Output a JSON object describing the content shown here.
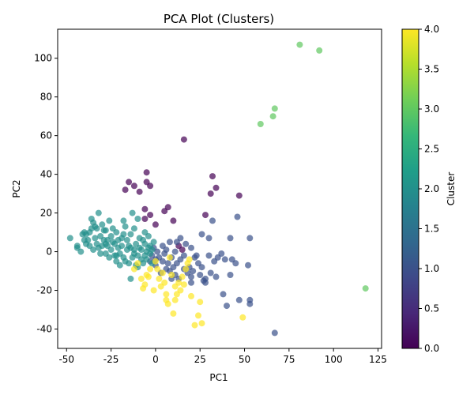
{
  "chart_data": {
    "type": "scatter",
    "title": "PCA Plot (Clusters)",
    "xlabel": "PC1",
    "ylabel": "PC2",
    "xlim": [
      -55,
      127
    ],
    "ylim": [
      -50,
      115
    ],
    "xticks": [
      -50,
      -25,
      0,
      25,
      50,
      75,
      100,
      125
    ],
    "yticks": [
      -40,
      -20,
      0,
      20,
      40,
      60,
      80,
      100
    ],
    "grid": false,
    "marker_alpha": 0.7,
    "colormap": "viridis",
    "colormap_stops": [
      "#440154",
      "#482878",
      "#3e4989",
      "#31688e",
      "#26828e",
      "#1f9e89",
      "#35b779",
      "#6ece58",
      "#b5de2b",
      "#fde725"
    ],
    "colorbar": {
      "label": "Cluster",
      "range": [
        0,
        4
      ],
      "ticks": [
        "0.0",
        "0.5",
        "1.0",
        "1.5",
        "2.0",
        "2.5",
        "3.0",
        "3.5",
        "4.0"
      ]
    },
    "series": [
      {
        "cluster": 0,
        "points": [
          [
            16,
            58
          ],
          [
            -5,
            41
          ],
          [
            -15,
            36
          ],
          [
            -9,
            31
          ],
          [
            -12,
            34
          ],
          [
            -5,
            36
          ],
          [
            -3,
            34
          ],
          [
            -17,
            32
          ],
          [
            -6,
            22
          ],
          [
            -3,
            19
          ],
          [
            -6,
            17
          ],
          [
            7,
            23
          ],
          [
            5,
            21
          ],
          [
            10,
            16
          ],
          [
            0,
            14
          ],
          [
            32,
            39
          ],
          [
            34,
            33
          ],
          [
            31,
            30
          ],
          [
            47,
            29
          ],
          [
            28,
            19
          ],
          [
            13,
            3
          ],
          [
            15,
            1
          ]
        ]
      },
      {
        "cluster": 1,
        "points": [
          [
            -2,
            -2
          ],
          [
            2,
            -3
          ],
          [
            4,
            -5
          ],
          [
            0,
            -7
          ],
          [
            6,
            -9
          ],
          [
            3,
            -11
          ],
          [
            8,
            -10
          ],
          [
            10,
            -8
          ],
          [
            12,
            -6
          ],
          [
            14,
            -4
          ],
          [
            9,
            -3
          ],
          [
            11,
            -12
          ],
          [
            13,
            -14
          ],
          [
            16,
            -9
          ],
          [
            18,
            -11
          ],
          [
            20,
            -13
          ],
          [
            20,
            -16
          ],
          [
            22,
            -3
          ],
          [
            24,
            -6
          ],
          [
            26,
            -8
          ],
          [
            25,
            -12
          ],
          [
            28,
            -14
          ],
          [
            28,
            -16
          ],
          [
            31,
            -11
          ],
          [
            30,
            -2
          ],
          [
            33,
            -5
          ],
          [
            35,
            -3
          ],
          [
            37,
            -1
          ],
          [
            38,
            -22
          ],
          [
            40,
            -28
          ],
          [
            42,
            -12
          ],
          [
            43,
            -4
          ],
          [
            45,
            -6
          ],
          [
            46,
            18
          ],
          [
            47,
            -25
          ],
          [
            53,
            -25
          ],
          [
            53,
            -27
          ],
          [
            53,
            7
          ],
          [
            52,
            -7
          ],
          [
            67,
            -42
          ],
          [
            32,
            16
          ],
          [
            26,
            9
          ],
          [
            30,
            7
          ],
          [
            14,
            7
          ],
          [
            12,
            5
          ],
          [
            17,
            4
          ],
          [
            20,
            2
          ],
          [
            6,
            1
          ],
          [
            4,
            3
          ],
          [
            8,
            5
          ],
          [
            0,
            -4
          ],
          [
            -3,
            -5
          ],
          [
            -1,
            2
          ],
          [
            1,
            0
          ],
          [
            5,
            -1
          ],
          [
            7,
            -6
          ],
          [
            9,
            -14
          ],
          [
            19,
            -8
          ],
          [
            21,
            -10
          ],
          [
            16,
            -2
          ],
          [
            11,
            0
          ],
          [
            42,
            7
          ],
          [
            23,
            -2
          ],
          [
            27,
            -15
          ],
          [
            34,
            -13
          ],
          [
            39,
            -4
          ]
        ]
      },
      {
        "cluster": 2,
        "points": [
          [
            -48,
            7
          ],
          [
            -44,
            3
          ],
          [
            -42,
            0
          ],
          [
            -40,
            10
          ],
          [
            -39,
            9
          ],
          [
            -38,
            6
          ],
          [
            -37,
            3
          ],
          [
            -36,
            17
          ],
          [
            -36,
            12
          ],
          [
            -35,
            15
          ],
          [
            -34,
            7
          ],
          [
            -33,
            4
          ],
          [
            -32,
            20
          ],
          [
            -32,
            2
          ],
          [
            -31,
            8
          ],
          [
            -30,
            14
          ],
          [
            -29,
            6
          ],
          [
            -28,
            11
          ],
          [
            -28,
            -1
          ],
          [
            -27,
            3
          ],
          [
            -26,
            16
          ],
          [
            -25,
            8
          ],
          [
            -24,
            5
          ],
          [
            -23,
            -2
          ],
          [
            -22,
            10
          ],
          [
            -22,
            -5
          ],
          [
            -21,
            2
          ],
          [
            -20,
            -7
          ],
          [
            -19,
            7
          ],
          [
            -18,
            16
          ],
          [
            -18,
            -3
          ],
          [
            -17,
            13
          ],
          [
            -16,
            1
          ],
          [
            -15,
            -6
          ],
          [
            -14,
            9
          ],
          [
            -14,
            -14
          ],
          [
            -13,
            20
          ],
          [
            -12,
            12
          ],
          [
            -12,
            -1
          ],
          [
            -11,
            4
          ],
          [
            -10,
            -8
          ],
          [
            -10,
            17
          ],
          [
            -9,
            2
          ],
          [
            -8,
            -4
          ],
          [
            -7,
            6
          ],
          [
            -6,
            -2
          ],
          [
            -5,
            0
          ],
          [
            -4,
            8
          ],
          [
            -3,
            3
          ],
          [
            -2,
            -6
          ],
          [
            -1,
            5
          ],
          [
            -44,
            2
          ],
          [
            -41,
            9
          ],
          [
            -39,
            4
          ],
          [
            -37,
            10
          ],
          [
            -35,
            1
          ],
          [
            -33,
            12
          ],
          [
            -31,
            -1
          ],
          [
            -30,
            3
          ],
          [
            -29,
            11
          ],
          [
            -27,
            6
          ],
          [
            -26,
            -3
          ],
          [
            -25,
            1
          ],
          [
            -24,
            12
          ],
          [
            -23,
            4
          ],
          [
            -21,
            6
          ],
          [
            -20,
            -1
          ],
          [
            -19,
            3
          ],
          [
            -17,
            -5
          ],
          [
            -16,
            6
          ],
          [
            -15,
            3
          ],
          [
            -13,
            -3
          ],
          [
            -12,
            1
          ],
          [
            -11,
            -7
          ],
          [
            -9,
            7
          ],
          [
            -8,
            1
          ],
          [
            -7,
            -6
          ],
          [
            -6,
            4
          ],
          [
            -5,
            -4
          ],
          [
            -4,
            2
          ],
          [
            -3,
            -1
          ],
          [
            -2,
            1
          ],
          [
            -40,
            6
          ],
          [
            -34,
            13
          ],
          [
            -28,
            4
          ],
          [
            -22,
            -2
          ],
          [
            -18,
            9
          ],
          [
            -14,
            2
          ],
          [
            -10,
            -2
          ],
          [
            -6,
            10
          ]
        ]
      },
      {
        "cluster": 3,
        "points": [
          [
            81,
            107
          ],
          [
            92,
            104
          ],
          [
            67,
            74
          ],
          [
            66,
            70
          ],
          [
            59,
            66
          ],
          [
            118,
            -19
          ]
        ]
      },
      {
        "cluster": 4,
        "points": [
          [
            -12,
            -9
          ],
          [
            -10,
            -6
          ],
          [
            -8,
            -14
          ],
          [
            -7,
            -19
          ],
          [
            -6,
            -17
          ],
          [
            -5,
            -12
          ],
          [
            -3,
            -9
          ],
          [
            -1,
            -20
          ],
          [
            0,
            -5
          ],
          [
            2,
            -14
          ],
          [
            3,
            -18
          ],
          [
            5,
            -16
          ],
          [
            6,
            -25
          ],
          [
            6,
            -22
          ],
          [
            7,
            -27
          ],
          [
            8,
            -3
          ],
          [
            9,
            -12
          ],
          [
            10,
            -32
          ],
          [
            11,
            -25
          ],
          [
            11,
            -18
          ],
          [
            12,
            -22
          ],
          [
            13,
            -16
          ],
          [
            14,
            -20
          ],
          [
            15,
            -13
          ],
          [
            16,
            -17
          ],
          [
            17,
            -9
          ],
          [
            18,
            -6
          ],
          [
            19,
            -4
          ],
          [
            22,
            -38
          ],
          [
            24,
            -33
          ],
          [
            25,
            -26
          ],
          [
            26,
            -37
          ],
          [
            20,
            -23
          ],
          [
            49,
            -34
          ],
          [
            -4,
            -13
          ],
          [
            1,
            -9
          ],
          [
            4,
            -11
          ]
        ]
      }
    ]
  }
}
